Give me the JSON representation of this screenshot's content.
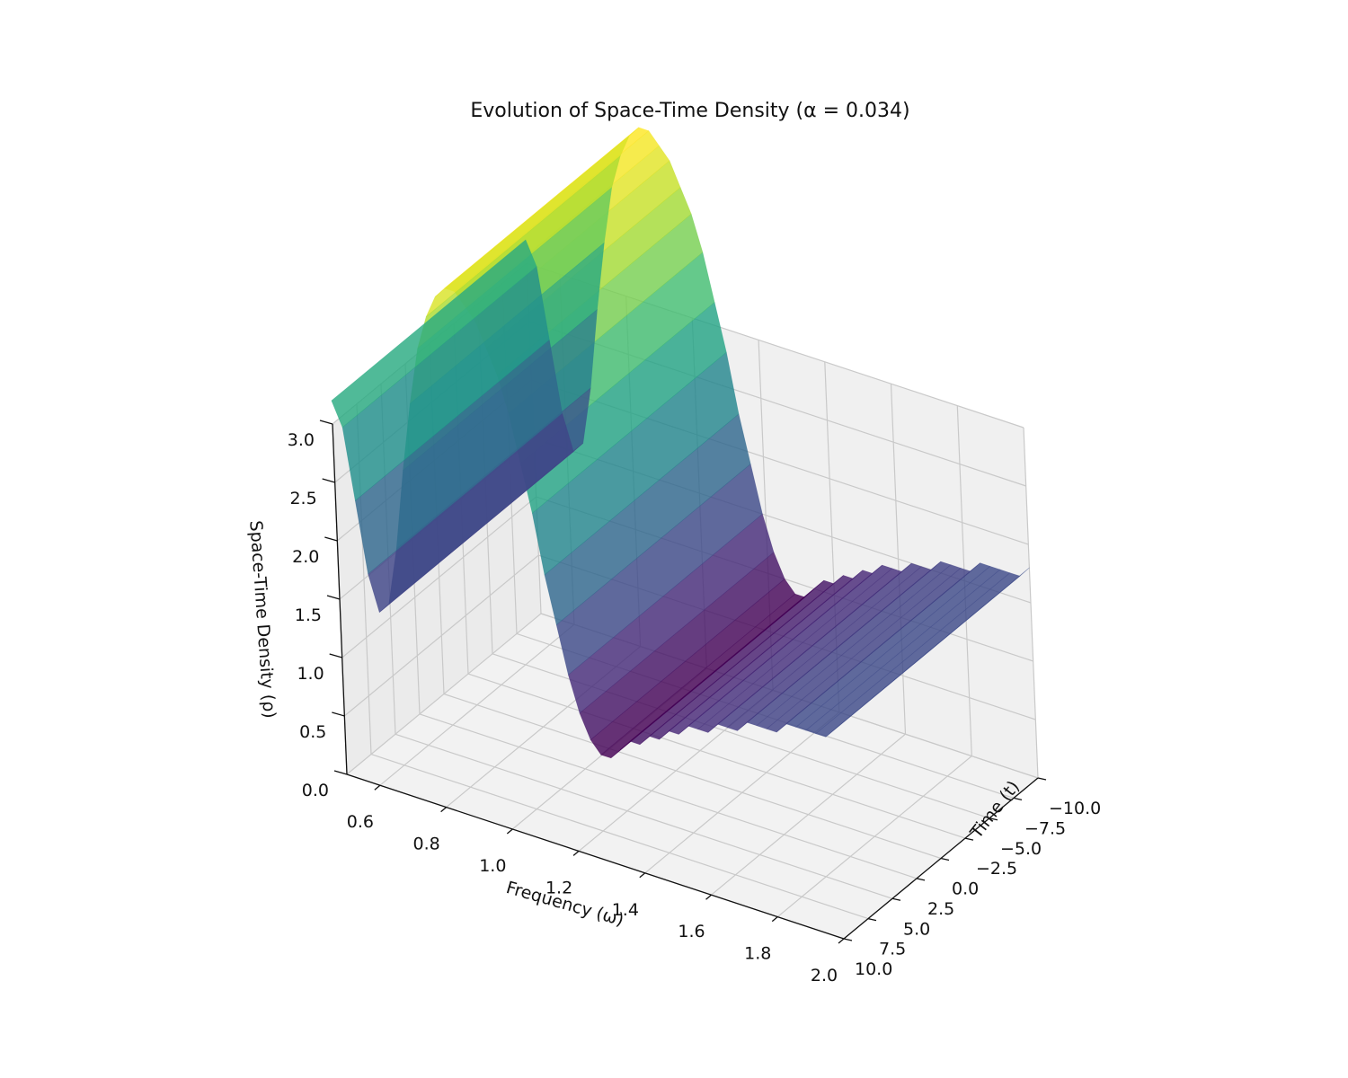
{
  "chart_data": {
    "type": "surface3d",
    "title": "Evolution of Space-Time Density (α = 0.034)",
    "xlabel": "Frequency (ω)",
    "ylabel": "Time (t)",
    "zlabel": "Space-Time Density (ρ)",
    "xlim": [
      0.5,
      2.0
    ],
    "ylim": [
      -10.0,
      10.0
    ],
    "zlim": [
      0.0,
      3.0
    ],
    "x_ticks": [
      "0.6",
      "0.8",
      "1.0",
      "1.2",
      "1.4",
      "1.6",
      "1.8",
      "2.0"
    ],
    "y_ticks": [
      "−10.0",
      "−7.5",
      "−5.0",
      "−2.5",
      "0.0",
      "2.5",
      "5.0",
      "7.5",
      "10.0"
    ],
    "z_ticks": [
      "0.0",
      "0.5",
      "1.0",
      "1.5",
      "2.0",
      "2.5",
      "3.0"
    ],
    "colormap": "viridis",
    "grid": true,
    "surface_profile": {
      "description_free": true,
      "x": [
        0.5,
        0.53,
        0.56,
        0.59,
        0.62,
        0.65,
        0.68,
        0.71,
        0.74,
        0.77,
        0.8,
        0.83,
        0.86,
        0.89,
        0.92,
        0.95,
        0.98,
        1.01,
        1.04,
        1.07,
        1.1,
        1.13,
        1.16,
        1.19,
        1.22,
        1.25,
        1.28,
        1.31,
        1.34,
        1.37,
        1.4,
        1.43,
        1.46,
        1.49,
        1.52,
        1.55,
        1.58,
        1.61,
        1.64,
        1.67,
        1.7,
        1.73,
        1.76,
        1.79,
        1.82,
        1.85,
        1.88,
        1.91,
        1.94,
        1.97,
        2.0
      ],
      "rho_by_time": [
        {
          "t": -10.0,
          "rho": [
            3.2,
            3.0,
            2.4,
            1.8,
            1.5,
            1.6,
            2.1,
            2.8,
            3.4,
            3.9,
            4.2,
            4.4,
            4.5,
            4.5,
            4.4,
            4.3,
            4.1,
            3.9,
            3.6,
            3.2,
            2.8,
            2.3,
            1.9,
            1.5,
            1.2,
            1.0,
            0.9,
            0.9,
            1.0,
            1.1,
            1.1,
            1.2,
            1.2,
            1.3,
            1.3,
            1.4,
            1.4,
            1.4,
            1.5,
            1.5,
            1.5,
            1.6,
            1.6,
            1.6,
            1.6,
            1.7,
            1.7,
            1.7,
            1.7,
            1.7,
            1.8
          ]
        },
        {
          "t": 10.0,
          "rho": [
            3.2,
            3.0,
            2.4,
            1.8,
            1.5,
            1.6,
            2.1,
            2.8,
            3.4,
            3.9,
            4.2,
            4.4,
            4.5,
            4.5,
            4.4,
            4.3,
            4.1,
            3.9,
            3.6,
            3.2,
            2.8,
            2.3,
            1.9,
            1.5,
            1.2,
            1.0,
            0.9,
            0.9,
            1.0,
            1.1,
            1.1,
            1.2,
            1.2,
            1.3,
            1.3,
            1.4,
            1.4,
            1.4,
            1.5,
            1.5,
            1.5,
            1.6,
            1.6,
            1.6,
            1.6,
            1.7,
            1.7,
            1.7,
            1.7,
            1.7,
            1.8
          ]
        }
      ]
    }
  }
}
